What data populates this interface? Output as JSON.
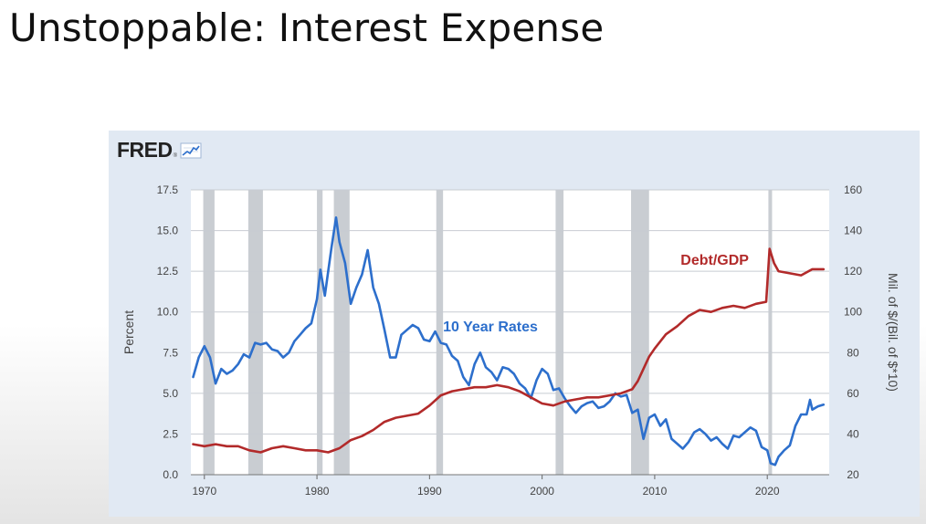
{
  "slide": {
    "title": "Unstoppable: Interest Expense"
  },
  "logo": {
    "text": "FRED",
    "reg": "®",
    "icon": "trend-chart-icon"
  },
  "colors": {
    "rate_line": "#2d6fcc",
    "debt_line": "#b22a2a",
    "recession": "#c9cdd2",
    "grid": "#c8ccd2",
    "card_bg": "#e1e9f3",
    "plot_bg": "#ffffff",
    "annotation_rate": "#2d6fcc",
    "annotation_debt": "#b22a2a"
  },
  "chart_data": {
    "type": "line",
    "title": "",
    "ylabel": "Percent",
    "y2label": "Mil. of $/(Bil. of $*10)",
    "ylim": [
      0,
      17.5
    ],
    "y2lim": [
      20,
      160
    ],
    "yticks": [
      "0.0",
      "2.5",
      "5.0",
      "7.5",
      "10.0",
      "12.5",
      "15.0",
      "17.5"
    ],
    "y2ticks": [
      "20",
      "40",
      "60",
      "80",
      "100",
      "120",
      "140",
      "160"
    ],
    "xlim": [
      1968.8,
      2025.5
    ],
    "xticks": [
      "1970",
      "1980",
      "1990",
      "2000",
      "2010",
      "2020"
    ],
    "grid": true,
    "annotations": [
      {
        "text": "10 Year Rates",
        "series": "rate",
        "x": 1991.2,
        "y": 8.8
      },
      {
        "text": "Debt/GDP",
        "series": "debt",
        "x": 2012.3,
        "y": 12.9
      }
    ],
    "recessions": [
      [
        1969.9,
        1970.9
      ],
      [
        1973.9,
        1975.2
      ],
      [
        1980.0,
        1980.5
      ],
      [
        1981.5,
        1982.9
      ],
      [
        1990.6,
        1991.2
      ],
      [
        2001.2,
        2001.9
      ],
      [
        2007.9,
        2009.5
      ],
      [
        2020.1,
        2020.3
      ]
    ],
    "series": [
      {
        "name": "10 Year Rates",
        "axis": "left",
        "x": [
          1969.0,
          1969.5,
          1970.0,
          1970.5,
          1971.0,
          1971.5,
          1972.0,
          1972.5,
          1973.0,
          1973.5,
          1974.0,
          1974.5,
          1975.0,
          1975.5,
          1976.0,
          1976.5,
          1977.0,
          1977.5,
          1978.0,
          1978.5,
          1979.0,
          1979.5,
          1980.0,
          1980.3,
          1980.7,
          1981.0,
          1981.3,
          1981.7,
          1982.0,
          1982.5,
          1983.0,
          1983.5,
          1984.0,
          1984.5,
          1985.0,
          1985.5,
          1986.0,
          1986.5,
          1987.0,
          1987.5,
          1988.0,
          1988.5,
          1989.0,
          1989.5,
          1990.0,
          1990.5,
          1991.0,
          1991.5,
          1992.0,
          1992.5,
          1993.0,
          1993.5,
          1994.0,
          1994.5,
          1995.0,
          1995.5,
          1996.0,
          1996.5,
          1997.0,
          1997.5,
          1998.0,
          1998.5,
          1999.0,
          1999.5,
          2000.0,
          2000.5,
          2001.0,
          2001.5,
          2002.0,
          2002.5,
          2003.0,
          2003.5,
          2004.0,
          2004.5,
          2005.0,
          2005.5,
          2006.0,
          2006.5,
          2007.0,
          2007.5,
          2008.0,
          2008.5,
          2009.0,
          2009.5,
          2010.0,
          2010.5,
          2011.0,
          2011.5,
          2012.0,
          2012.5,
          2013.0,
          2013.5,
          2014.0,
          2014.5,
          2015.0,
          2015.5,
          2016.0,
          2016.5,
          2017.0,
          2017.5,
          2018.0,
          2018.5,
          2019.0,
          2019.5,
          2020.0,
          2020.3,
          2020.7,
          2021.0,
          2021.5,
          2022.0,
          2022.5,
          2023.0,
          2023.5,
          2023.8,
          2024.0,
          2024.5,
          2025.0
        ],
        "values": [
          6.0,
          7.2,
          7.9,
          7.2,
          5.6,
          6.5,
          6.2,
          6.4,
          6.8,
          7.4,
          7.2,
          8.1,
          8.0,
          8.1,
          7.7,
          7.6,
          7.2,
          7.5,
          8.2,
          8.6,
          9.0,
          9.3,
          10.8,
          12.6,
          11.0,
          12.5,
          14.0,
          15.8,
          14.3,
          13.0,
          10.5,
          11.5,
          12.3,
          13.8,
          11.5,
          10.5,
          8.9,
          7.2,
          7.2,
          8.6,
          8.9,
          9.2,
          9.0,
          8.3,
          8.2,
          8.8,
          8.1,
          8.0,
          7.3,
          7.0,
          6.0,
          5.5,
          6.8,
          7.5,
          6.6,
          6.3,
          5.8,
          6.6,
          6.5,
          6.2,
          5.6,
          5.3,
          4.7,
          5.8,
          6.5,
          6.2,
          5.2,
          5.3,
          4.7,
          4.2,
          3.8,
          4.2,
          4.4,
          4.5,
          4.1,
          4.2,
          4.5,
          5.0,
          4.8,
          4.9,
          3.8,
          4.0,
          2.2,
          3.5,
          3.7,
          3.0,
          3.4,
          2.2,
          1.9,
          1.6,
          2.0,
          2.6,
          2.8,
          2.5,
          2.1,
          2.3,
          1.9,
          1.6,
          2.4,
          2.3,
          2.6,
          2.9,
          2.7,
          1.7,
          1.5,
          0.7,
          0.6,
          1.1,
          1.5,
          1.8,
          3.0,
          3.7,
          3.7,
          4.6,
          4.0,
          4.2,
          4.3
        ]
      },
      {
        "name": "Debt/GDP",
        "axis": "right",
        "x": [
          1969.0,
          1970.0,
          1971.0,
          1972.0,
          1973.0,
          1974.0,
          1975.0,
          1976.0,
          1977.0,
          1978.0,
          1979.0,
          1980.0,
          1981.0,
          1982.0,
          1983.0,
          1984.0,
          1985.0,
          1986.0,
          1987.0,
          1988.0,
          1989.0,
          1990.0,
          1991.0,
          1992.0,
          1993.0,
          1994.0,
          1995.0,
          1996.0,
          1997.0,
          1998.0,
          1999.0,
          2000.0,
          2001.0,
          2002.0,
          2003.0,
          2004.0,
          2005.0,
          2006.0,
          2007.0,
          2008.0,
          2008.5,
          2009.0,
          2009.5,
          2010.0,
          2011.0,
          2012.0,
          2013.0,
          2014.0,
          2015.0,
          2016.0,
          2017.0,
          2018.0,
          2019.0,
          2019.9,
          2020.2,
          2020.6,
          2021.0,
          2022.0,
          2023.0,
          2024.0,
          2025.0
        ],
        "values": [
          35,
          34,
          35,
          34,
          34,
          32,
          31,
          33,
          34,
          33,
          32,
          32,
          31,
          33,
          37,
          39,
          42,
          46,
          48,
          49,
          50,
          54,
          59,
          61,
          62,
          63,
          63,
          64,
          63,
          61,
          58,
          55,
          54,
          56,
          57,
          58,
          58,
          59,
          60,
          62,
          66,
          72,
          78,
          82,
          89,
          93,
          98,
          101,
          100,
          102,
          103,
          102,
          104,
          105,
          131,
          124,
          120,
          119,
          118,
          121,
          121
        ]
      }
    ]
  }
}
